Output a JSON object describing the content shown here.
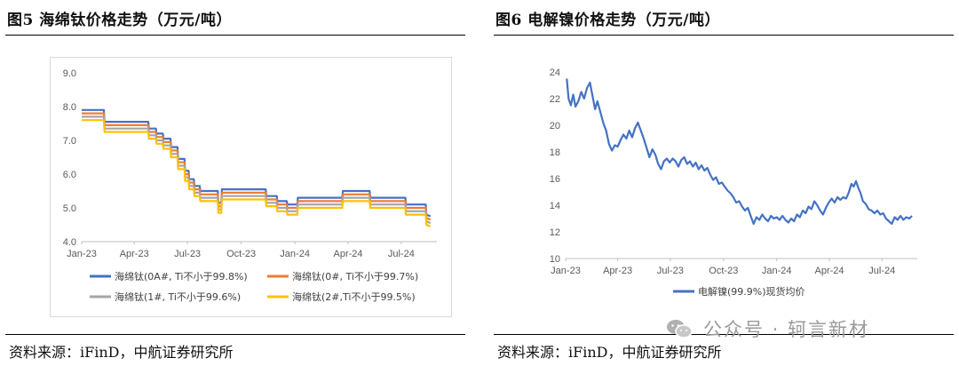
{
  "left": {
    "title": "图5  海绵钛价格走势（万元/吨）",
    "source": "资料来源：iFinD，中航证券研究所"
  },
  "right": {
    "title": "图6  电解镍价格走势（万元/吨）",
    "source": "资料来源：iFinD，中航证券研究所"
  },
  "watermark": {
    "text": "公众号 · 轲言新材",
    "icon": "wechat-icon"
  },
  "chart_data": [
    {
      "type": "line",
      "ylim": [
        4.0,
        9.0
      ],
      "yticks": [
        "9.0",
        "8.0",
        "7.0",
        "6.0",
        "5.0",
        "4.0"
      ],
      "ytick_values": [
        9,
        8,
        7,
        6,
        5,
        4
      ],
      "xlim": [
        "2023-01-01",
        "2024-08-31"
      ],
      "xticks": [
        "Jan-23",
        "Apr-23",
        "Jul-23",
        "Oct-23",
        "Jan-24",
        "Apr-24",
        "Jul-24"
      ],
      "xtick_dates": [
        "2023-01-01",
        "2023-04-01",
        "2023-07-01",
        "2023-10-01",
        "2024-01-01",
        "2024-04-01",
        "2024-07-01"
      ],
      "grid": false,
      "legend": "bottom",
      "base_points": [
        [
          "2023-01-01",
          7.9
        ],
        [
          "2023-02-08",
          7.9
        ],
        [
          "2023-02-09",
          7.55
        ],
        [
          "2023-04-25",
          7.55
        ],
        [
          "2023-04-26",
          7.35
        ],
        [
          "2023-05-08",
          7.35
        ],
        [
          "2023-05-09",
          7.2
        ],
        [
          "2023-05-20",
          7.2
        ],
        [
          "2023-05-21",
          7.05
        ],
        [
          "2023-06-02",
          7.05
        ],
        [
          "2023-06-03",
          6.8
        ],
        [
          "2023-06-14",
          6.8
        ],
        [
          "2023-06-15",
          6.45
        ],
        [
          "2023-06-26",
          6.45
        ],
        [
          "2023-06-27",
          6.1
        ],
        [
          "2023-07-03",
          6.1
        ],
        [
          "2023-07-04",
          5.85
        ],
        [
          "2023-07-12",
          5.85
        ],
        [
          "2023-07-13",
          5.65
        ],
        [
          "2023-07-22",
          5.65
        ],
        [
          "2023-07-23",
          5.5
        ],
        [
          "2023-08-22",
          5.5
        ],
        [
          "2023-08-23",
          5.15
        ],
        [
          "2023-08-28",
          5.15
        ],
        [
          "2023-08-29",
          5.55
        ],
        [
          "2023-11-12",
          5.55
        ],
        [
          "2023-11-13",
          5.35
        ],
        [
          "2023-12-01",
          5.35
        ],
        [
          "2023-12-02",
          5.2
        ],
        [
          "2023-12-18",
          5.2
        ],
        [
          "2023-12-19",
          5.1
        ],
        [
          "2024-01-05",
          5.1
        ],
        [
          "2024-01-06",
          5.3
        ],
        [
          "2024-03-22",
          5.3
        ],
        [
          "2024-03-23",
          5.5
        ],
        [
          "2024-05-08",
          5.5
        ],
        [
          "2024-05-09",
          5.3
        ],
        [
          "2024-07-08",
          5.3
        ],
        [
          "2024-07-09",
          5.1
        ],
        [
          "2024-08-12",
          5.1
        ],
        [
          "2024-08-13",
          4.8
        ],
        [
          "2024-08-20",
          4.75
        ]
      ],
      "series": [
        {
          "name": "海绵钛(0A#, Ti不小于99.8%)",
          "offset": 0.0,
          "color": "#4472c4"
        },
        {
          "name": "海绵钛(0#, Ti不小于99.7%)",
          "offset": -0.1,
          "color": "#ed7d31"
        },
        {
          "name": "海绵钛(1#, Ti不小于99.6%)",
          "offset": -0.2,
          "color": "#a5a5a5"
        },
        {
          "name": "海绵钛(2#,Ti不小于99.5%)",
          "offset": -0.3,
          "color": "#ffc000"
        }
      ]
    },
    {
      "type": "line",
      "ylim": [
        10,
        24
      ],
      "yticks": [
        "24",
        "22",
        "20",
        "18",
        "16",
        "14",
        "12",
        "10"
      ],
      "ytick_values": [
        24,
        22,
        20,
        18,
        16,
        14,
        12,
        10
      ],
      "xlim": [
        "2023-01-01",
        "2024-08-31"
      ],
      "xticks": [
        "Jan-23",
        "Apr-23",
        "Jul-23",
        "Oct-23",
        "Jan-24",
        "Apr-24",
        "Jul-24"
      ],
      "xtick_dates": [
        "2023-01-01",
        "2023-04-01",
        "2023-07-01",
        "2023-10-01",
        "2024-01-01",
        "2024-04-01",
        "2024-07-01"
      ],
      "grid": false,
      "legend": "bottom",
      "series": [
        {
          "name": "电解镍(99.9%)现货均价",
          "color": "#4472c4",
          "points": [
            [
              "2023-01-03",
              23.5
            ],
            [
              "2023-01-06",
              22.0
            ],
            [
              "2023-01-10",
              21.5
            ],
            [
              "2023-01-14",
              22.3
            ],
            [
              "2023-01-18",
              21.4
            ],
            [
              "2023-01-23",
              21.8
            ],
            [
              "2023-01-28",
              22.5
            ],
            [
              "2023-02-02",
              22.0
            ],
            [
              "2023-02-07",
              22.8
            ],
            [
              "2023-02-12",
              23.2
            ],
            [
              "2023-02-16",
              22.3
            ],
            [
              "2023-02-21",
              21.2
            ],
            [
              "2023-02-25",
              21.8
            ],
            [
              "2023-03-02",
              21.0
            ],
            [
              "2023-03-07",
              20.2
            ],
            [
              "2023-03-12",
              19.6
            ],
            [
              "2023-03-17",
              18.6
            ],
            [
              "2023-03-22",
              18.1
            ],
            [
              "2023-03-27",
              18.5
            ],
            [
              "2023-04-01",
              18.4
            ],
            [
              "2023-04-06",
              18.9
            ],
            [
              "2023-04-11",
              19.3
            ],
            [
              "2023-04-16",
              19.0
            ],
            [
              "2023-04-21",
              19.6
            ],
            [
              "2023-04-26",
              19.1
            ],
            [
              "2023-05-01",
              19.8
            ],
            [
              "2023-05-06",
              20.2
            ],
            [
              "2023-05-11",
              19.6
            ],
            [
              "2023-05-16",
              19.0
            ],
            [
              "2023-05-21",
              18.3
            ],
            [
              "2023-05-26",
              17.6
            ],
            [
              "2023-05-31",
              18.2
            ],
            [
              "2023-06-05",
              17.8
            ],
            [
              "2023-06-10",
              17.1
            ],
            [
              "2023-06-15",
              16.7
            ],
            [
              "2023-06-20",
              17.3
            ],
            [
              "2023-06-25",
              17.5
            ],
            [
              "2023-06-30",
              17.2
            ],
            [
              "2023-07-05",
              17.5
            ],
            [
              "2023-07-10",
              17.3
            ],
            [
              "2023-07-15",
              16.9
            ],
            [
              "2023-07-20",
              17.4
            ],
            [
              "2023-07-25",
              17.6
            ],
            [
              "2023-07-30",
              17.1
            ],
            [
              "2023-08-04",
              17.3
            ],
            [
              "2023-08-09",
              16.9
            ],
            [
              "2023-08-14",
              17.2
            ],
            [
              "2023-08-19",
              16.7
            ],
            [
              "2023-08-24",
              17.0
            ],
            [
              "2023-08-29",
              16.6
            ],
            [
              "2023-09-03",
              16.8
            ],
            [
              "2023-09-08",
              16.3
            ],
            [
              "2023-09-13",
              15.9
            ],
            [
              "2023-09-18",
              16.1
            ],
            [
              "2023-09-23",
              15.6
            ],
            [
              "2023-09-28",
              15.7
            ],
            [
              "2023-10-03",
              15.4
            ],
            [
              "2023-10-08",
              15.1
            ],
            [
              "2023-10-13",
              14.9
            ],
            [
              "2023-10-18",
              14.6
            ],
            [
              "2023-10-23",
              14.2
            ],
            [
              "2023-10-28",
              14.3
            ],
            [
              "2023-11-02",
              13.9
            ],
            [
              "2023-11-07",
              13.6
            ],
            [
              "2023-11-12",
              13.8
            ],
            [
              "2023-11-17",
              13.2
            ],
            [
              "2023-11-22",
              12.6
            ],
            [
              "2023-11-27",
              13.1
            ],
            [
              "2023-12-02",
              12.9
            ],
            [
              "2023-12-07",
              13.3
            ],
            [
              "2023-12-12",
              13.0
            ],
            [
              "2023-12-17",
              12.8
            ],
            [
              "2023-12-22",
              13.2
            ],
            [
              "2023-12-27",
              13.0
            ],
            [
              "2024-01-01",
              13.1
            ],
            [
              "2024-01-06",
              12.9
            ],
            [
              "2024-01-11",
              13.2
            ],
            [
              "2024-01-16",
              12.9
            ],
            [
              "2024-01-21",
              12.7
            ],
            [
              "2024-01-26",
              13.0
            ],
            [
              "2024-01-31",
              12.8
            ],
            [
              "2024-02-05",
              13.3
            ],
            [
              "2024-02-10",
              13.1
            ],
            [
              "2024-02-15",
              13.6
            ],
            [
              "2024-02-20",
              13.4
            ],
            [
              "2024-02-25",
              13.9
            ],
            [
              "2024-03-01",
              13.7
            ],
            [
              "2024-03-06",
              14.3
            ],
            [
              "2024-03-11",
              14.0
            ],
            [
              "2024-03-16",
              13.6
            ],
            [
              "2024-03-21",
              13.3
            ],
            [
              "2024-03-26",
              13.8
            ],
            [
              "2024-03-31",
              14.2
            ],
            [
              "2024-04-05",
              14.5
            ],
            [
              "2024-04-10",
              14.2
            ],
            [
              "2024-04-15",
              14.6
            ],
            [
              "2024-04-20",
              14.4
            ],
            [
              "2024-04-25",
              14.6
            ],
            [
              "2024-04-30",
              14.5
            ],
            [
              "2024-05-05",
              15.0
            ],
            [
              "2024-05-09",
              15.6
            ],
            [
              "2024-05-13",
              15.4
            ],
            [
              "2024-05-17",
              15.8
            ],
            [
              "2024-05-21",
              15.3
            ],
            [
              "2024-05-25",
              14.9
            ],
            [
              "2024-05-29",
              14.3
            ],
            [
              "2024-06-03",
              14.1
            ],
            [
              "2024-06-08",
              13.7
            ],
            [
              "2024-06-13",
              13.6
            ],
            [
              "2024-06-18",
              13.4
            ],
            [
              "2024-06-23",
              13.6
            ],
            [
              "2024-06-28",
              13.3
            ],
            [
              "2024-07-03",
              13.4
            ],
            [
              "2024-07-08",
              13.0
            ],
            [
              "2024-07-13",
              12.8
            ],
            [
              "2024-07-18",
              12.6
            ],
            [
              "2024-07-23",
              13.1
            ],
            [
              "2024-07-28",
              12.9
            ],
            [
              "2024-08-02",
              13.2
            ],
            [
              "2024-08-07",
              12.9
            ],
            [
              "2024-08-12",
              13.1
            ],
            [
              "2024-08-17",
              13.0
            ],
            [
              "2024-08-22",
              13.2
            ]
          ]
        }
      ]
    }
  ]
}
